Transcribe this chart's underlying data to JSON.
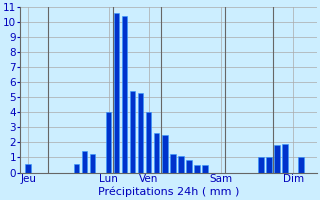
{
  "title": "",
  "xlabel": "Précipitations 24h ( mm )",
  "ylabel": "",
  "background_color": "#cceeff",
  "bar_color": "#0033cc",
  "bar_edge_color": "#3399ff",
  "grid_color": "#aaaaaa",
  "ylim": [
    0,
    11
  ],
  "yticks": [
    0,
    1,
    2,
    3,
    4,
    5,
    6,
    7,
    8,
    9,
    10,
    11
  ],
  "bar_values": [
    0.6,
    0,
    0,
    0,
    0,
    0,
    0.6,
    1.4,
    1.2,
    0,
    4.0,
    10.6,
    10.4,
    5.4,
    5.3,
    4.0,
    2.6,
    2.5,
    1.2,
    1.1,
    0.8,
    0.5,
    0.5,
    0,
    0,
    0,
    0,
    0,
    0,
    1.0,
    1.0,
    1.8,
    1.9,
    0,
    1.0,
    0
  ],
  "day_labels": [
    "Jeu",
    "Lun",
    "Ven",
    "Sam",
    "Dim"
  ],
  "day_tick_x": [
    0,
    10,
    15,
    24,
    33
  ],
  "vline_positions": [
    2.5,
    10.5,
    16.5,
    24.5,
    30.5
  ],
  "text_color": "#0000bb",
  "label_fontsize": 7.5,
  "xlabel_fontsize": 8
}
